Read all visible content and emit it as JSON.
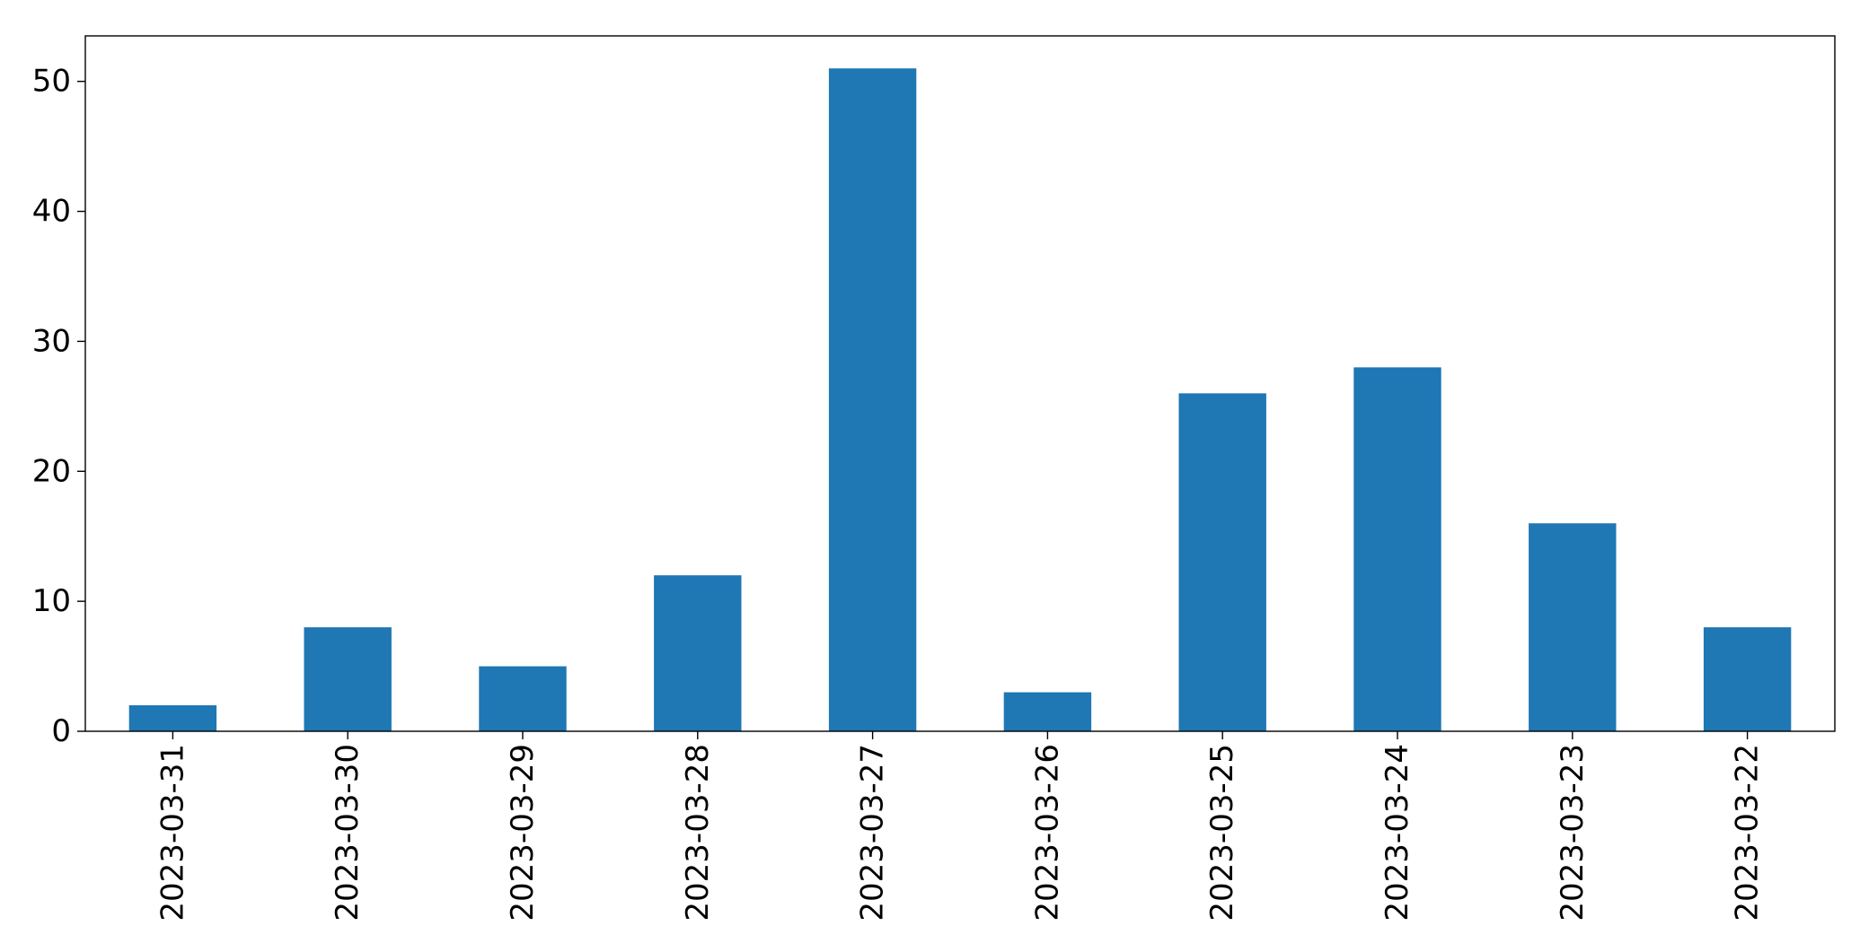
{
  "chart_data": {
    "type": "bar",
    "categories": [
      "2023-03-31",
      "2023-03-30",
      "2023-03-29",
      "2023-03-28",
      "2023-03-27",
      "2023-03-26",
      "2023-03-25",
      "2023-03-24",
      "2023-03-23",
      "2023-03-22"
    ],
    "values": [
      2,
      8,
      5,
      12,
      51,
      3,
      26,
      28,
      16,
      8
    ],
    "title": "",
    "xlabel": "",
    "ylabel": "",
    "ylim": [
      0,
      53.5
    ],
    "yticks": [
      0,
      10,
      20,
      30,
      40,
      50
    ],
    "bar_color": "#1f77b4",
    "grid": false,
    "legend": "none",
    "x_tick_rotation": "vertical"
  }
}
